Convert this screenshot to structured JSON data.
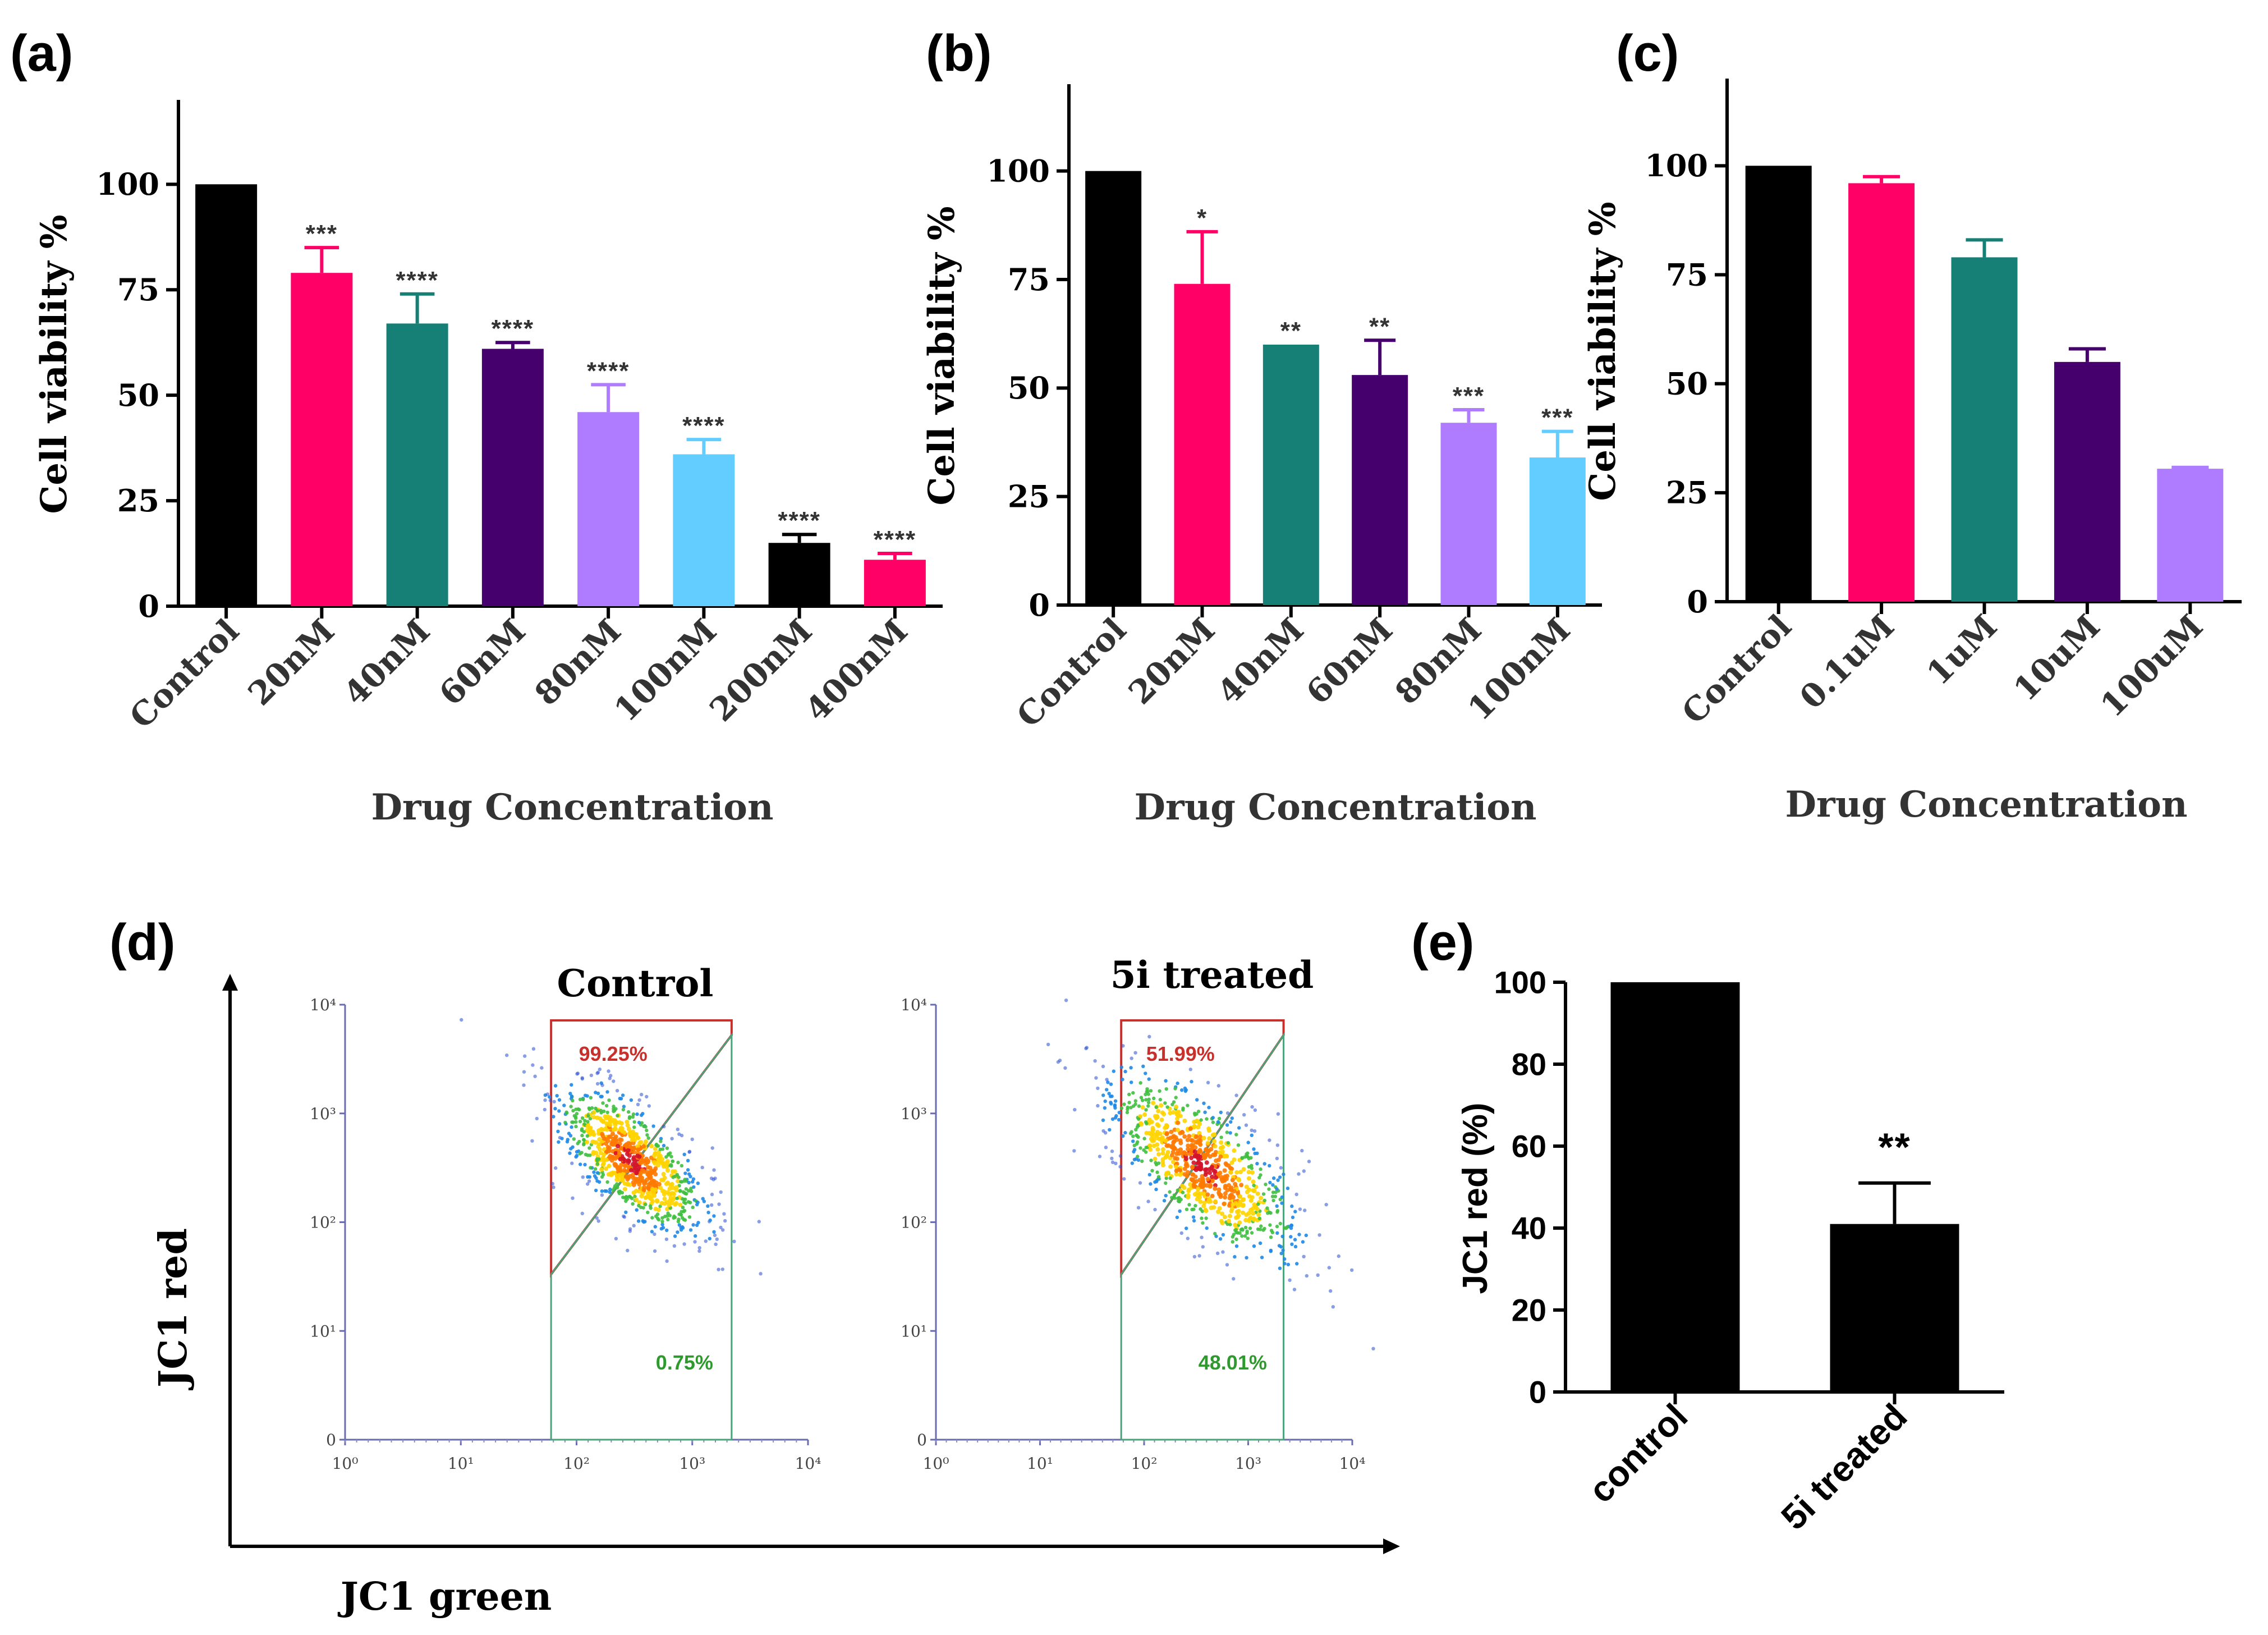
{
  "chart_data": [
    {
      "panel": "(a)",
      "type": "bar",
      "ylabel": "Cell viability %",
      "xlabel": "Drug Concentration",
      "ylim": [
        0,
        120
      ],
      "yticks": [
        0,
        25,
        50,
        75,
        100
      ],
      "categories": [
        "Control",
        "20nM",
        "40nM",
        "60nM",
        "80nM",
        "100nM",
        "200nM",
        "400nM"
      ],
      "values": [
        100,
        79,
        67,
        61,
        46,
        36,
        15,
        11
      ],
      "errors": [
        0,
        6,
        7,
        1.5,
        6.5,
        3.5,
        2,
        1.5
      ],
      "significance": [
        "",
        "***",
        "****",
        "****",
        "****",
        "****",
        "****",
        "****"
      ],
      "colors": [
        "#000000",
        "#ff0066",
        "#168076",
        "#45006e",
        "#b07cff",
        "#64cdff",
        "#000000",
        "#ff0066"
      ]
    },
    {
      "panel": "(b)",
      "type": "bar",
      "ylabel": "Cell viability %",
      "xlabel": "Drug Concentration",
      "ylim": [
        0,
        120
      ],
      "yticks": [
        0,
        25,
        50,
        75,
        100
      ],
      "categories": [
        "Control",
        "20nM",
        "40nM",
        "60nM",
        "80nM",
        "100nM"
      ],
      "values": [
        100,
        74,
        60,
        53,
        42,
        34
      ],
      "errors": [
        0,
        12,
        0,
        8,
        3,
        6
      ],
      "significance": [
        "",
        "*",
        "**",
        "**",
        "***",
        "***"
      ],
      "colors": [
        "#000000",
        "#ff0066",
        "#168076",
        "#45006e",
        "#b07cff",
        "#64cdff"
      ]
    },
    {
      "panel": "(c)",
      "type": "bar",
      "ylabel": "Cell viability %",
      "xlabel": "Drug Concentration",
      "ylim": [
        0,
        120
      ],
      "yticks": [
        0,
        25,
        50,
        75,
        100
      ],
      "categories": [
        "Control",
        "0.1uM",
        "1uM",
        "10uM",
        "100uM"
      ],
      "values": [
        100,
        96,
        79,
        55,
        30.5
      ],
      "errors": [
        0,
        1.5,
        4,
        3,
        0.3
      ],
      "significance": [
        "",
        "",
        "",
        "",
        ""
      ],
      "colors": [
        "#000000",
        "#ff0066",
        "#168076",
        "#45006e",
        "#b07cff"
      ]
    },
    {
      "panel": "(e)",
      "type": "bar",
      "ylabel": "JC1 red (%)",
      "xlabel": "",
      "ylim": [
        0,
        100
      ],
      "yticks": [
        0,
        20,
        40,
        60,
        80,
        100
      ],
      "categories": [
        "control",
        "5i treated"
      ],
      "values": [
        100,
        41
      ],
      "errors": [
        0,
        10
      ],
      "significance": [
        "",
        "**"
      ],
      "colors": [
        "#000000",
        "#000000"
      ]
    }
  ],
  "flow": {
    "panel": "(d)",
    "ylabel": "JC1 red",
    "xlabel": "JC1 green",
    "y_ticks": [
      "10⁴",
      "10³",
      "10²",
      "10¹",
      "0"
    ],
    "x_ticks": [
      "10⁰",
      "10¹",
      "10²",
      "10³",
      "10⁴"
    ],
    "plots": [
      {
        "title": "Control",
        "upper_pct": "99.25%",
        "lower_pct": "0.75%"
      },
      {
        "title": "5i treated",
        "upper_pct": "51.99%",
        "lower_pct": "48.01%"
      }
    ]
  }
}
